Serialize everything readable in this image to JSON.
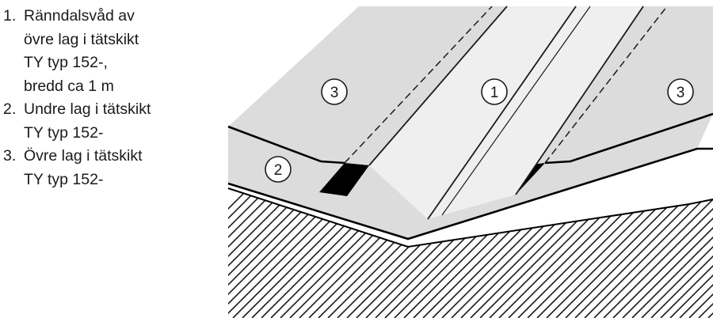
{
  "legend": {
    "items": [
      {
        "number": "1.",
        "lines": [
          "Ränndalsvåd av",
          "övre lag i tätskikt",
          "TY typ 152-,",
          "bredd ca 1 m"
        ]
      },
      {
        "number": "2.",
        "lines": [
          "Undre lag i tätskikt",
          "TY typ 152-"
        ]
      },
      {
        "number": "3.",
        "lines": [
          "Övre lag i tätskikt",
          "TY typ 152-"
        ]
      }
    ]
  },
  "callouts": {
    "left_upper": "3",
    "center_strip": "1",
    "right_upper": "3",
    "left_lower": "2"
  },
  "colors": {
    "roof_surface": "#dcdcdc",
    "valley_strip": "#efefef",
    "fill_dark": "#000000",
    "line": "#1a1a1a"
  }
}
